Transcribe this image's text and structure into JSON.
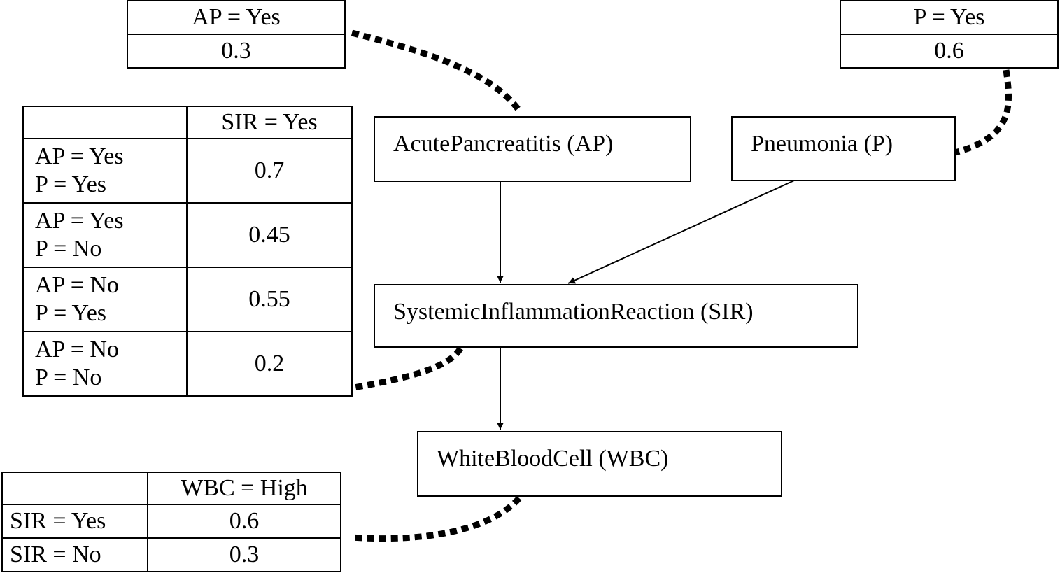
{
  "nodes": {
    "ap": "AcutePancreatitis (AP)",
    "p": "Pneumonia (P)",
    "sir": "SystemicInflammationReaction (SIR)",
    "wbc": "WhiteBloodCell (WBC)"
  },
  "cpt_ap": {
    "header": "AP = Yes",
    "value": "0.3"
  },
  "cpt_p": {
    "header": "P = Yes",
    "value": "0.6"
  },
  "cpt_sir": {
    "header": "SIR = Yes",
    "rows": [
      {
        "ap": "AP = Yes",
        "p": "P = Yes",
        "value": "0.7"
      },
      {
        "ap": "AP = Yes",
        "p": "P = No",
        "value": "0.45"
      },
      {
        "ap": "AP = No",
        "p": "P = Yes",
        "value": "0.55"
      },
      {
        "ap": "AP = No",
        "p": "P = No",
        "value": "0.2"
      }
    ]
  },
  "cpt_wbc": {
    "header": "WBC = High",
    "rows": [
      {
        "cond": "SIR = Yes",
        "value": "0.6"
      },
      {
        "cond": "SIR = No",
        "value": "0.3"
      }
    ]
  }
}
